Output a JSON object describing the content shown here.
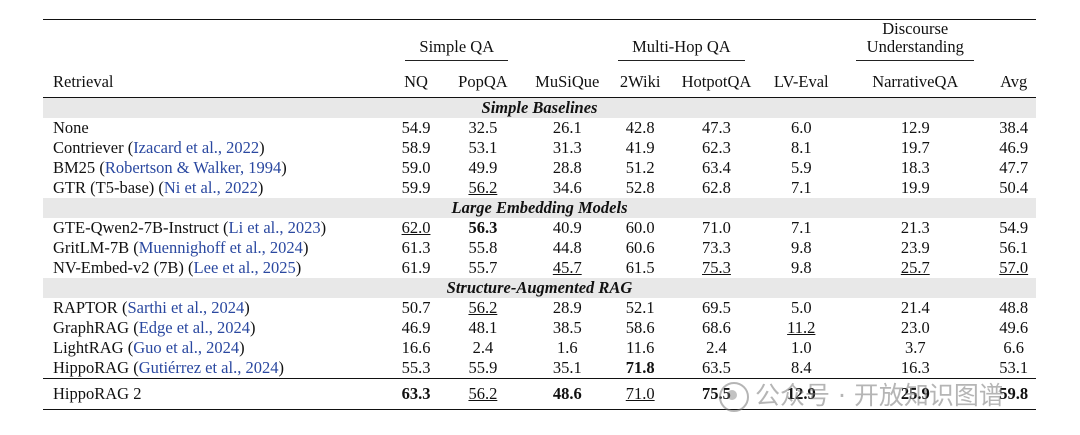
{
  "groups": [
    {
      "label": "Simple QA",
      "span": 2
    },
    {
      "label": "Multi-Hop QA",
      "span": 4
    },
    {
      "label": "Discourse Understanding",
      "span": 1
    }
  ],
  "columns": [
    "Retrieval",
    "NQ",
    "PopQA",
    "MuSiQue",
    "2Wiki",
    "HotpotQA",
    "LV-Eval",
    "NarrativeQA",
    "Avg"
  ],
  "sections": [
    {
      "title": "Simple Baselines",
      "rows": [
        {
          "name": "None",
          "cite": "",
          "values": [
            "54.9",
            "32.5",
            "26.1",
            "42.8",
            "47.3",
            "6.0",
            "12.9",
            "38.4"
          ],
          "bold": [],
          "underline": []
        },
        {
          "name": "Contriever",
          "cite": "Izacard et al., 2022",
          "values": [
            "58.9",
            "53.1",
            "31.3",
            "41.9",
            "62.3",
            "8.1",
            "19.7",
            "46.9"
          ],
          "bold": [],
          "underline": []
        },
        {
          "name": "BM25",
          "cite": "Robertson & Walker, 1994",
          "values": [
            "59.0",
            "49.9",
            "28.8",
            "51.2",
            "63.4",
            "5.9",
            "18.3",
            "47.7"
          ],
          "bold": [],
          "underline": []
        },
        {
          "name": "GTR (T5-base)",
          "cite": "Ni et al., 2022",
          "values": [
            "59.9",
            "56.2",
            "34.6",
            "52.8",
            "62.8",
            "7.1",
            "19.9",
            "50.4"
          ],
          "bold": [],
          "underline": [
            1
          ]
        }
      ]
    },
    {
      "title": "Large Embedding Models",
      "rows": [
        {
          "name": "GTE-Qwen2-7B-Instruct",
          "cite": "Li et al., 2023",
          "values": [
            "62.0",
            "56.3",
            "40.9",
            "60.0",
            "71.0",
            "7.1",
            "21.3",
            "54.9"
          ],
          "bold": [
            1
          ],
          "underline": [
            0
          ]
        },
        {
          "name": "GritLM-7B",
          "cite": "Muennighoff et al., 2024",
          "values": [
            "61.3",
            "55.8",
            "44.8",
            "60.6",
            "73.3",
            "9.8",
            "23.9",
            "56.1"
          ],
          "bold": [],
          "underline": []
        },
        {
          "name": "NV-Embed-v2 (7B)",
          "cite": "Lee et al., 2025",
          "values": [
            "61.9",
            "55.7",
            "45.7",
            "61.5",
            "75.3",
            "9.8",
            "25.7",
            "57.0"
          ],
          "bold": [],
          "underline": [
            2,
            4,
            6,
            7
          ]
        }
      ]
    },
    {
      "title": "Structure-Augmented RAG",
      "rows": [
        {
          "name": "RAPTOR",
          "cite": "Sarthi et al., 2024",
          "values": [
            "50.7",
            "56.2",
            "28.9",
            "52.1",
            "69.5",
            "5.0",
            "21.4",
            "48.8"
          ],
          "bold": [],
          "underline": [
            1
          ]
        },
        {
          "name": "GraphRAG",
          "cite": "Edge et al., 2024",
          "values": [
            "46.9",
            "48.1",
            "38.5",
            "58.6",
            "68.6",
            "11.2",
            "23.0",
            "49.6"
          ],
          "bold": [],
          "underline": [
            5
          ]
        },
        {
          "name": "LightRAG",
          "cite": "Guo et al., 2024",
          "values": [
            "16.6",
            "2.4",
            "1.6",
            "11.6",
            "2.4",
            "1.0",
            "3.7",
            "6.6"
          ],
          "bold": [],
          "underline": []
        },
        {
          "name": "HippoRAG",
          "cite": "Gutiérrez et al., 2024",
          "values": [
            "55.3",
            "55.9",
            "35.1",
            "71.8",
            "63.5",
            "8.4",
            "16.3",
            "53.1"
          ],
          "bold": [
            3
          ],
          "underline": []
        }
      ]
    }
  ],
  "final_row": {
    "name": "HippoRAG 2",
    "values": [
      "63.3",
      "56.2",
      "48.6",
      "71.0",
      "75.5",
      "12.9",
      "25.9",
      "59.8"
    ],
    "bold": [
      0,
      2,
      4,
      5,
      6,
      7
    ],
    "underline": [
      1,
      3
    ]
  },
  "watermark": "公众号 · 开放知识图谱"
}
